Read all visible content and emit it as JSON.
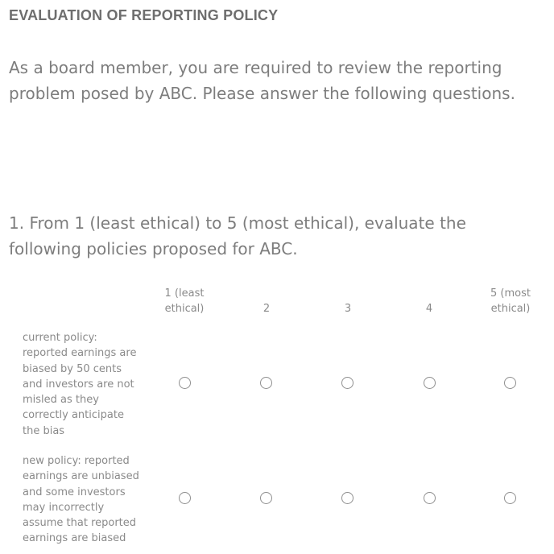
{
  "header": {
    "title": "EVALUATION OF REPORTING POLICY"
  },
  "intro": {
    "text": "As a board member, you are required to review the reporting problem posed by ABC. Please answer the following questions."
  },
  "question1": {
    "text": "1. From 1 (least ethical) to 5 (most ethical), evaluate the following policies proposed for ABC.",
    "columns": [
      {
        "label": "1 (least ethical)"
      },
      {
        "label": "2"
      },
      {
        "label": "3"
      },
      {
        "label": "4"
      },
      {
        "label": "5 (most ethical)"
      }
    ],
    "rows": [
      {
        "label": "current policy: reported earnings are biased by 50 cents and investors are not misled as they correctly anticipate the bias",
        "selected": null
      },
      {
        "label": "new policy: reported earnings are unbiased and some investors may incorrectly assume that reported earnings are biased",
        "selected": null
      }
    ]
  }
}
